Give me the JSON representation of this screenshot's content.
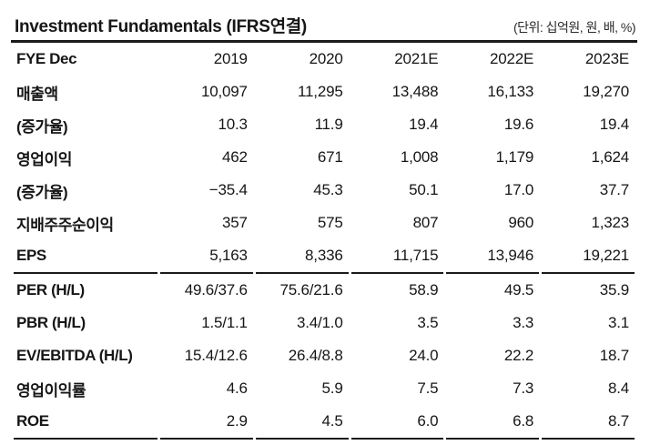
{
  "header": {
    "title": "Investment Fundamentals (IFRS연결)",
    "unit_note": "(단위: 십억원, 원, 배, %)"
  },
  "table": {
    "columns": [
      "FYE Dec",
      "2019",
      "2020",
      "2021E",
      "2022E",
      "2023E"
    ],
    "rows": [
      {
        "label": "매출액",
        "values": [
          "10,097",
          "11,295",
          "13,488",
          "16,133",
          "19,270"
        ]
      },
      {
        "label": "(증가율)",
        "values": [
          "10.3",
          "11.9",
          "19.4",
          "19.6",
          "19.4"
        ]
      },
      {
        "label": "영업이익",
        "values": [
          "462",
          "671",
          "1,008",
          "1,179",
          "1,624"
        ]
      },
      {
        "label": "(증가율)",
        "values": [
          "−35.4",
          "45.3",
          "50.1",
          "17.0",
          "37.7"
        ]
      },
      {
        "label": "지배주주순이익",
        "values": [
          "357",
          "575",
          "807",
          "960",
          "1,323"
        ]
      },
      {
        "label": "EPS",
        "values": [
          "5,163",
          "8,336",
          "11,715",
          "13,946",
          "19,221"
        ]
      },
      {
        "label": "PER (H/L)",
        "values": [
          "49.6/37.6",
          "75.6/21.6",
          "58.9",
          "49.5",
          "35.9"
        ]
      },
      {
        "label": "PBR (H/L)",
        "values": [
          "1.5/1.1",
          "3.4/1.0",
          "3.5",
          "3.3",
          "3.1"
        ]
      },
      {
        "label": "EV/EBITDA (H/L)",
        "values": [
          "15.4/12.6",
          "26.4/8.8",
          "24.0",
          "22.2",
          "18.7"
        ]
      },
      {
        "label": "영업이익률",
        "values": [
          "4.6",
          "5.9",
          "7.5",
          "7.3",
          "8.4"
        ]
      },
      {
        "label": "ROE",
        "values": [
          "2.9",
          "4.5",
          "6.0",
          "6.8",
          "8.7"
        ]
      }
    ],
    "section_rule_after_rows": [
      5,
      10
    ]
  },
  "colors": {
    "background": "#ffffff",
    "text": "#161616",
    "rule": "#1a1a1a"
  }
}
